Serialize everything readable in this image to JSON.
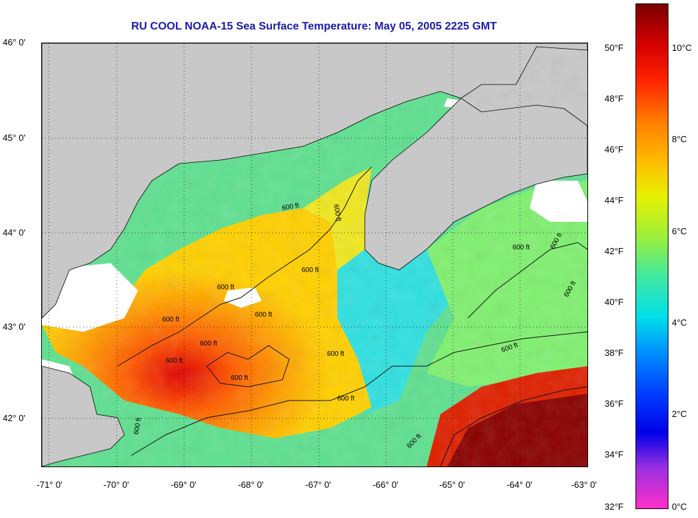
{
  "title": "RU COOL  NOAA-15  Sea Surface Temperature:  May 05, 2005 2225 GMT",
  "lat_labels": [
    "46° 0'",
    "45° 0'",
    "44° 0'",
    "43° 0'",
    "42° 0'"
  ],
  "lon_labels": [
    "-71° 0'",
    "-70° 0'",
    "-69° 0'",
    "-68° 0'",
    "-67° 0'",
    "-66° 0'",
    "-65° 0'",
    "-64° 0'",
    "-63° 0'"
  ],
  "contour_label": "600 ft",
  "colorbar": {
    "fahrenheit": [
      "50°F",
      "48°F",
      "46°F",
      "44°F",
      "42°F",
      "40°F",
      "38°F",
      "36°F",
      "34°F",
      "32°F"
    ],
    "celsius": [
      "10°C",
      "8°C",
      "6°C",
      "4°C",
      "2°C",
      "0°C"
    ],
    "colors": [
      "#7a0000",
      "#d40000",
      "#ff2200",
      "#ff7a00",
      "#ffbb00",
      "#e8f000",
      "#9ef03a",
      "#40e8a0",
      "#00e0e8",
      "#0090ff",
      "#0040ff",
      "#0000e8",
      "#9a30e0",
      "#ff30c8"
    ]
  },
  "land_color": "#c8c8c8",
  "cloud_color": "#ffffff"
}
